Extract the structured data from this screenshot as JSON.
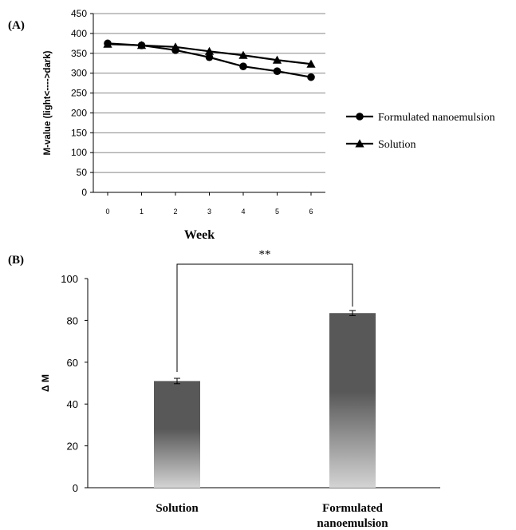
{
  "chart_data": [
    {
      "panel_label": "(A)",
      "type": "line",
      "x": [
        0,
        1,
        2,
        3,
        4,
        5,
        6
      ],
      "xlabel": "Week",
      "ylabel": "M-value (light<---->dark)",
      "ylim": [
        0,
        450
      ],
      "yticks": [
        0,
        50,
        100,
        150,
        200,
        250,
        300,
        350,
        400,
        450
      ],
      "grid": "horizontal",
      "legend_position": "right",
      "series": [
        {
          "name": "Formulated nanoemulsion",
          "marker": "circle",
          "values": [
            375,
            370,
            358,
            340,
            317,
            305,
            290
          ]
        },
        {
          "name": "Solution",
          "marker": "triangle",
          "values": [
            373,
            370,
            366,
            355,
            345,
            333,
            323
          ]
        }
      ]
    },
    {
      "panel_label": "(B)",
      "type": "bar",
      "categories": [
        "Solution",
        "Formulated nanoemulsion"
      ],
      "category_lines": [
        [
          "Solution"
        ],
        [
          "Formulated",
          "nanoemulsion"
        ]
      ],
      "values": [
        51,
        83.5
      ],
      "errors": [
        1.3,
        1.2
      ],
      "ylabel": "Δ M",
      "ylim": [
        0,
        100
      ],
      "yticks": [
        0,
        20,
        40,
        60,
        80,
        100
      ],
      "significance": "**"
    }
  ],
  "colors": {
    "line": "#000000",
    "grid": "#888888",
    "bar_top": "#585858",
    "bar_bottom": "#d4d4d4"
  }
}
